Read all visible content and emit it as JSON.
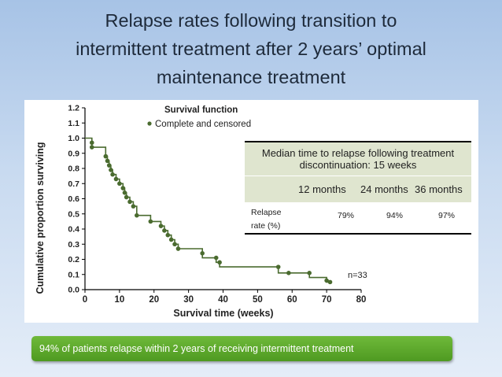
{
  "slide": {
    "title_lines": [
      "Relapse rates following transition to",
      "intermittent treatment after 2 years’ optimal",
      "maintenance treatment"
    ],
    "footer_text": "94% of patients relapse within 2 years of receiving  intermittent treatment"
  },
  "chart_data": {
    "type": "line",
    "step": true,
    "title": "Survival function",
    "legend": "Complete and censored",
    "legend_position": "top",
    "xlabel": "Survival time (weeks)",
    "ylabel": "Cumulative proportion surviving",
    "xlim": [
      0,
      80
    ],
    "ylim": [
      0.0,
      1.2
    ],
    "x_ticks": [
      "0",
      "10",
      "20",
      "30",
      "40",
      "50",
      "60",
      "70",
      "80"
    ],
    "y_ticks": [
      "0.0",
      "0.1",
      "0.2",
      "0.3",
      "0.4",
      "0.5",
      "0.6",
      "0.7",
      "0.8",
      "0.9",
      "1.0",
      "1.1",
      "1.2"
    ],
    "annotation": "n=33",
    "series": [
      {
        "name": "Survival",
        "x": [
          0,
          2,
          2,
          6,
          6,
          6.5,
          6.5,
          7,
          7,
          7.5,
          7.5,
          8,
          8,
          9,
          9,
          10,
          10,
          11,
          11,
          11.5,
          11.5,
          12,
          12,
          13,
          13,
          14,
          14,
          15,
          15,
          19,
          19,
          22,
          22,
          23,
          23,
          24,
          24,
          25,
          25,
          26,
          26,
          27,
          27,
          34,
          34,
          38,
          38,
          39,
          39,
          56,
          56,
          59,
          59,
          65,
          65,
          70,
          70,
          71
        ],
        "y": [
          1.0,
          1.0,
          0.94,
          0.94,
          0.88,
          0.88,
          0.85,
          0.85,
          0.82,
          0.82,
          0.79,
          0.79,
          0.76,
          0.76,
          0.73,
          0.73,
          0.7,
          0.7,
          0.67,
          0.67,
          0.64,
          0.64,
          0.61,
          0.61,
          0.58,
          0.58,
          0.55,
          0.55,
          0.49,
          0.49,
          0.45,
          0.45,
          0.42,
          0.42,
          0.39,
          0.39,
          0.36,
          0.36,
          0.33,
          0.33,
          0.3,
          0.3,
          0.27,
          0.27,
          0.21,
          0.21,
          0.18,
          0.18,
          0.15,
          0.15,
          0.11,
          0.11,
          0.11,
          0.11,
          0.08,
          0.08,
          0.05,
          0.05
        ]
      }
    ],
    "points": {
      "x": [
        2,
        2,
        6,
        6.5,
        7,
        7.5,
        8,
        9,
        10,
        11,
        11.5,
        12,
        13,
        14,
        15,
        19,
        22,
        23,
        24,
        25,
        26,
        27,
        34,
        38,
        39,
        56,
        59,
        65,
        70,
        71
      ],
      "y": [
        0.97,
        0.94,
        0.88,
        0.85,
        0.82,
        0.79,
        0.76,
        0.73,
        0.7,
        0.67,
        0.64,
        0.61,
        0.58,
        0.55,
        0.49,
        0.45,
        0.42,
        0.39,
        0.36,
        0.33,
        0.3,
        0.27,
        0.24,
        0.21,
        0.18,
        0.15,
        0.11,
        0.11,
        0.06,
        0.05
      ]
    }
  },
  "table": {
    "header": "Median time to relapse following treatment discontinuation: 15 weeks",
    "columns": [
      "12 months",
      "24 months",
      "36 months"
    ],
    "row_label_1": "Relapse",
    "row_label_2": "rate (%)",
    "values": [
      "79%",
      "94%",
      "97%"
    ]
  },
  "colors": {
    "curve": "#4a6b2f",
    "footer": "#5aa82b"
  }
}
